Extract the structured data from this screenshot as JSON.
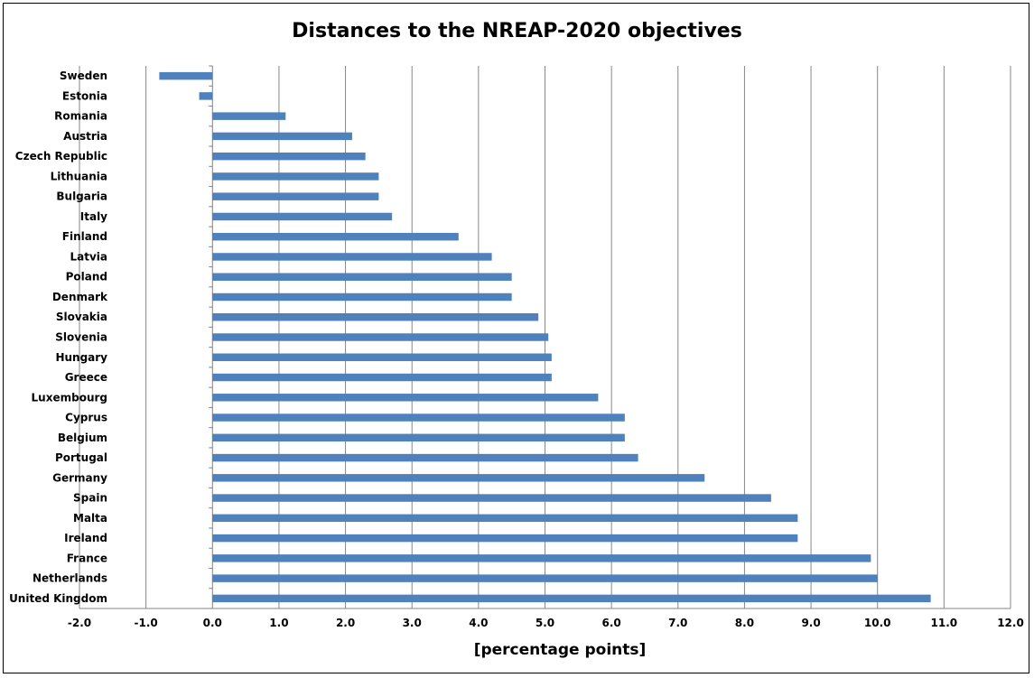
{
  "chart_data": {
    "type": "bar",
    "orientation": "horizontal",
    "title": "Distances to the NREAP-2020 objectives",
    "xlabel": "[percentage points]",
    "ylabel": "",
    "xlim": [
      -2.0,
      12.0
    ],
    "x_tick_labels": [
      "-2.0",
      "-1.0",
      "0.0",
      "1.0",
      "2.0",
      "3.0",
      "4.0",
      "5.0",
      "6.0",
      "7.0",
      "8.0",
      "9.0",
      "10.0",
      "11.0",
      "12.0"
    ],
    "grid": "vertical",
    "legend": "none",
    "bar_color": "#4f81bd",
    "categories": [
      "Sweden",
      "Estonia",
      "Romania",
      "Austria",
      "Czech Republic",
      "Lithuania",
      "Bulgaria",
      "Italy",
      "Finland",
      "Latvia",
      "Poland",
      "Denmark",
      "Slovakia",
      "Slovenia",
      "Hungary",
      "Greece",
      "Luxembourg",
      "Cyprus",
      "Belgium",
      "Portugal",
      "Germany",
      "Spain",
      "Malta",
      "Ireland",
      "France",
      "Netherlands",
      "United Kingdom"
    ],
    "values": [
      -0.8,
      -0.2,
      1.1,
      2.1,
      2.3,
      2.5,
      2.5,
      2.7,
      3.7,
      4.2,
      4.5,
      4.5,
      4.9,
      5.05,
      5.1,
      5.1,
      5.8,
      6.2,
      6.2,
      6.4,
      7.4,
      8.4,
      8.8,
      8.8,
      9.9,
      10.0,
      10.8
    ]
  }
}
